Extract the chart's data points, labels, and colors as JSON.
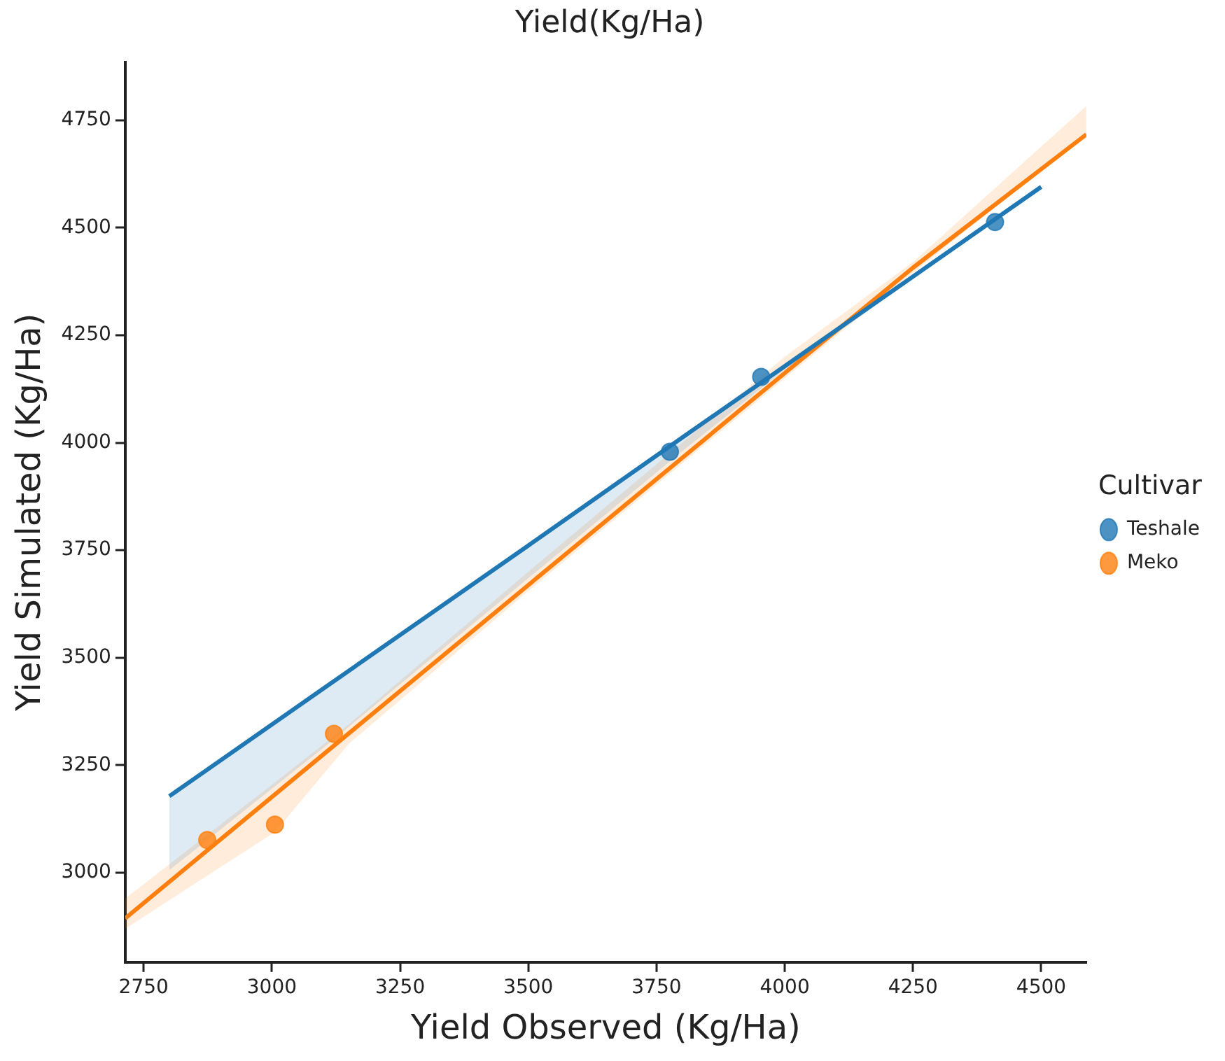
{
  "chart_data": {
    "type": "scatter",
    "title": "Yield(Kg/Ha)",
    "xlabel": "Yield Observed (Kg/Ha)",
    "ylabel": "Yield Simulated (Kg/Ha)",
    "legend_title": "Cultivar",
    "legend": "right",
    "grid": false,
    "xlim": [
      2714,
      4588
    ],
    "ylim": [
      2792,
      4885
    ],
    "xticks": [
      2750,
      3000,
      3250,
      3500,
      3750,
      4000,
      4250,
      4500
    ],
    "yticks": [
      3000,
      3250,
      3500,
      3750,
      4000,
      4250,
      4500,
      4750
    ],
    "series": [
      {
        "name": "Teshale",
        "color": "#1f77b4",
        "marker": "circle",
        "x": [
          3776,
          3954,
          4410
        ],
        "values": [
          3979,
          4153,
          4513
        ]
      },
      {
        "name": "Meko",
        "color": "#ff7f0e",
        "marker": "circle",
        "x": [
          2874,
          3006,
          3121
        ],
        "values": [
          3076,
          3112,
          3323
        ]
      },
      {
        "type": "line",
        "color": "#1f77b4",
        "x": [
          2800,
          3100,
          3500,
          3800,
          4000,
          4500
        ],
        "values": [
          3178,
          3428,
          3761,
          4012,
          4178,
          4595
        ],
        "lower": [
          3006,
          3290,
          3685,
          3980,
          4170,
          4590
        ],
        "upper": [
          3178,
          3428,
          3761,
          4012,
          4185,
          4600
        ]
      },
      {
        "type": "line",
        "color": "#ff7f0e",
        "x": [
          2714,
          3006,
          3150,
          3500,
          4000,
          4250,
          4588
        ],
        "values": [
          2894,
          3182,
          3324,
          3669,
          4162,
          4407,
          4717
        ],
        "lower": [
          2870,
          3095,
          3300,
          3655,
          4150,
          4395,
          4717
        ],
        "upper": [
          2940,
          3210,
          3345,
          3700,
          4200,
          4420,
          4783
        ]
      }
    ]
  }
}
